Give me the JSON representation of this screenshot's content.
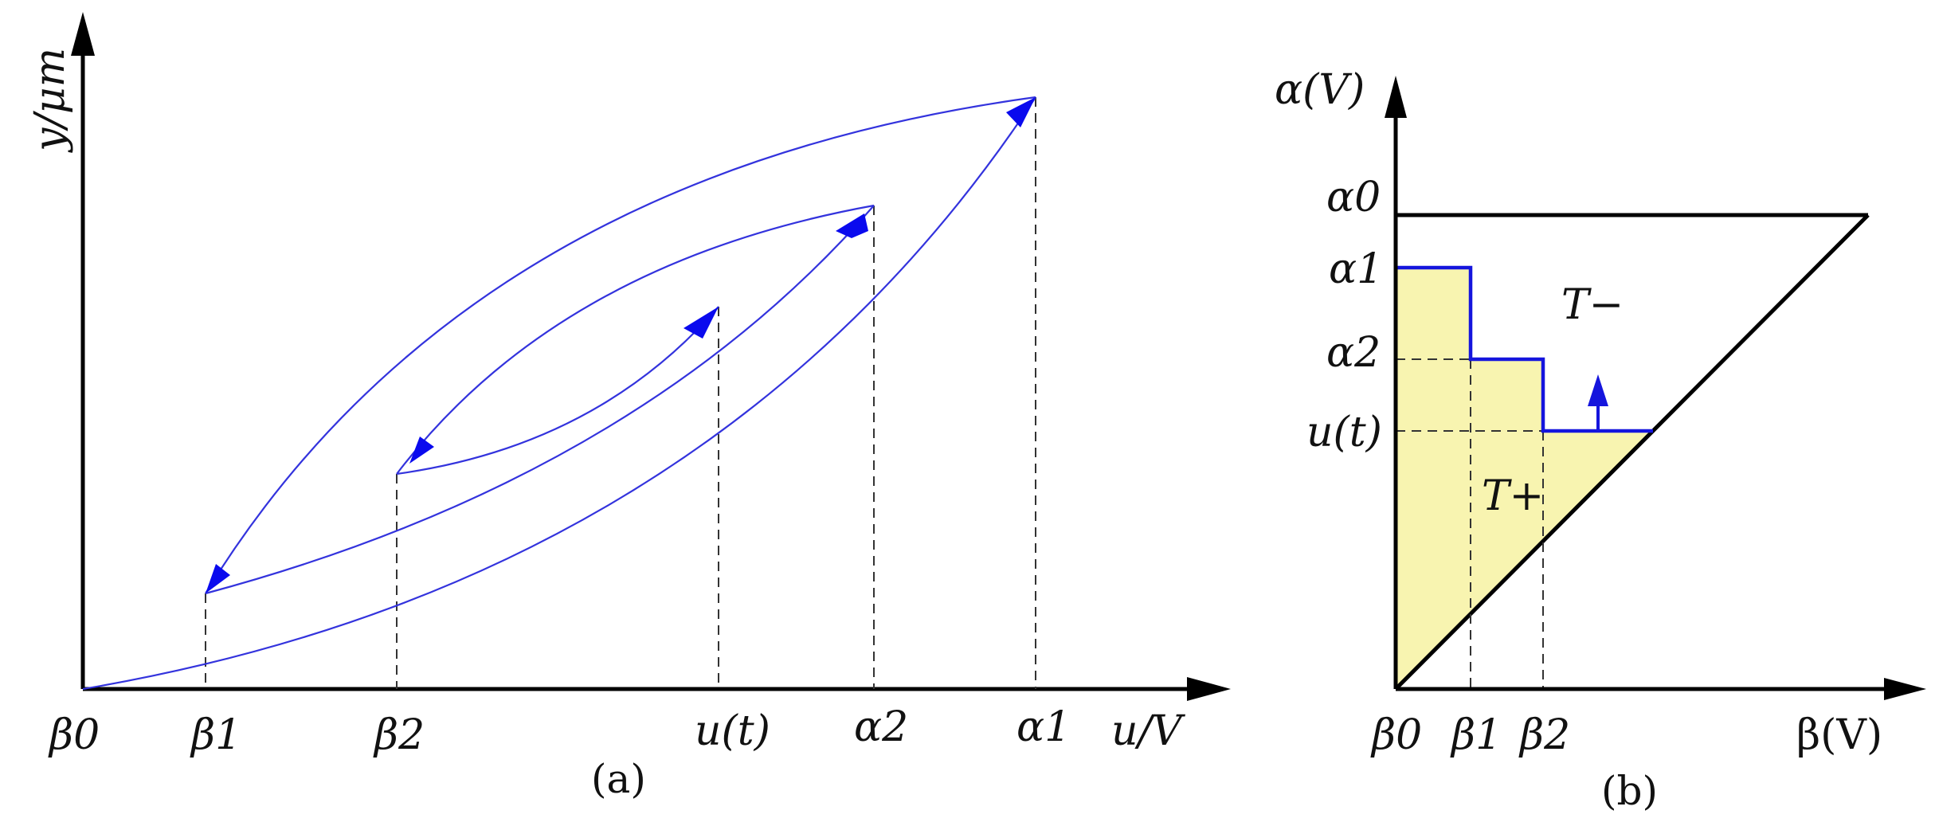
{
  "panel_a": {
    "y_axis_label": "y/μm",
    "x_axis_label": "u/V",
    "x_ticks": [
      "β0",
      "β1",
      "β2",
      "u(t)",
      "α2",
      "α1"
    ],
    "caption": "(a)",
    "curve_color": "#3333dd",
    "arrow_color": "#0a0aee"
  },
  "panel_b": {
    "y_axis_label": "α(V)",
    "x_axis_label": "β(V)",
    "y_ticks": [
      "α0",
      "α1",
      "α2",
      "u(t)"
    ],
    "x_ticks": [
      "β0",
      "β1",
      "β2"
    ],
    "region_minus": "T−",
    "region_plus": "T+",
    "caption": "(b)",
    "fill_color": "#f8f4b0",
    "staircase_color": "#1515dd"
  }
}
